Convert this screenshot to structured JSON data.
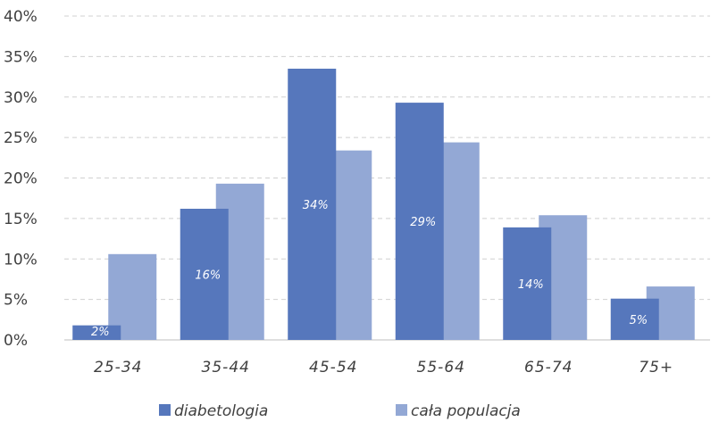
{
  "chart_data": {
    "type": "bar",
    "categories": [
      "25-34",
      "35-44",
      "45-54",
      "55-64",
      "65-74",
      "75+"
    ],
    "series": [
      {
        "name": "diabetologia",
        "values": [
          1.8,
          16.2,
          33.5,
          29.3,
          13.9,
          5.1
        ],
        "data_labels": [
          "2%",
          "16%",
          "34%",
          "29%",
          "14%",
          "5%"
        ],
        "color": "#5677BC"
      },
      {
        "name": "cała populacja",
        "values": [
          10.6,
          19.3,
          23.4,
          24.4,
          15.4,
          6.6
        ],
        "color": "#93A8D5"
      }
    ],
    "ylim": [
      0,
      40
    ],
    "yticks": [
      "0%",
      "5%",
      "10%",
      "15%",
      "20%",
      "25%",
      "30%",
      "35%",
      "40%"
    ],
    "grid": true,
    "legend_position": "bottom"
  }
}
